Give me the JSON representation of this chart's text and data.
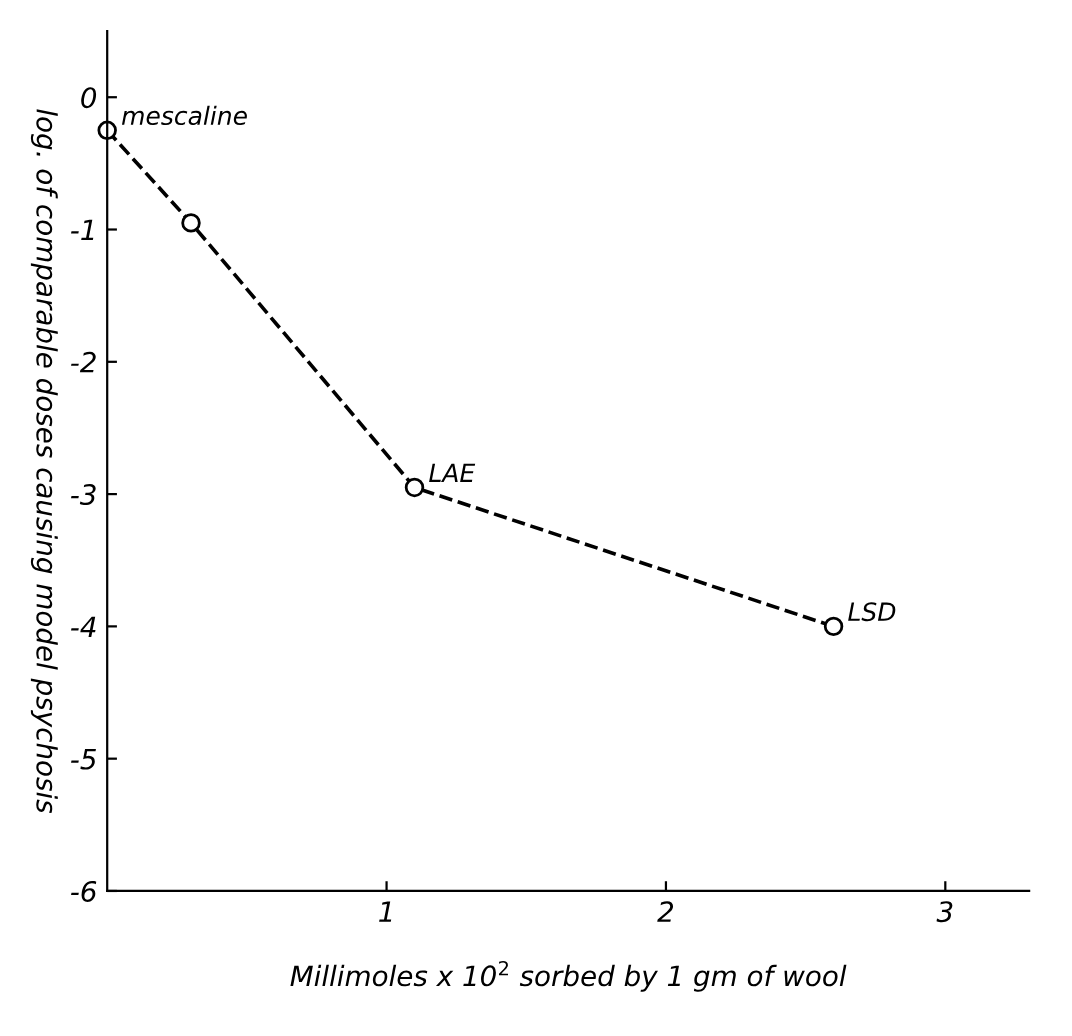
{
  "chart_data": {
    "type": "line",
    "xlabel": "Millimoles x 10$^{2}$ sorbed by 1 gm of wool",
    "ylabel": "log. of comparable doses causing model psychosis",
    "series": [
      {
        "color": "#000000",
        "x": [
          0.0,
          0.3,
          1.1,
          2.6
        ],
        "values": [
          -0.25,
          -0.95,
          -2.95,
          -4.0
        ]
      }
    ],
    "xlim": [
      0,
      3.3
    ],
    "ylim": [
      -6,
      0.5
    ],
    "xticks": [
      1,
      2,
      3
    ],
    "yticks": [
      {
        "value": 0,
        "label": "0"
      },
      {
        "value": -1,
        "label": "-1"
      },
      {
        "value": -2,
        "label": "-2"
      },
      {
        "value": -3,
        "label": "-3"
      },
      {
        "value": -4,
        "label": "-4"
      },
      {
        "value": -5,
        "label": "-5"
      },
      {
        "value": -6,
        "label": "-6"
      }
    ],
    "marker": "circle",
    "line_style": "dashed",
    "grid": false,
    "legend": false,
    "annotations": [
      {
        "text": "mescaline",
        "x": 0.0,
        "y": -0.25
      },
      {
        "text": "LAE",
        "x": 1.1,
        "y": -2.95
      },
      {
        "text": "LSD",
        "x": 2.6,
        "y": -4.0
      }
    ]
  }
}
